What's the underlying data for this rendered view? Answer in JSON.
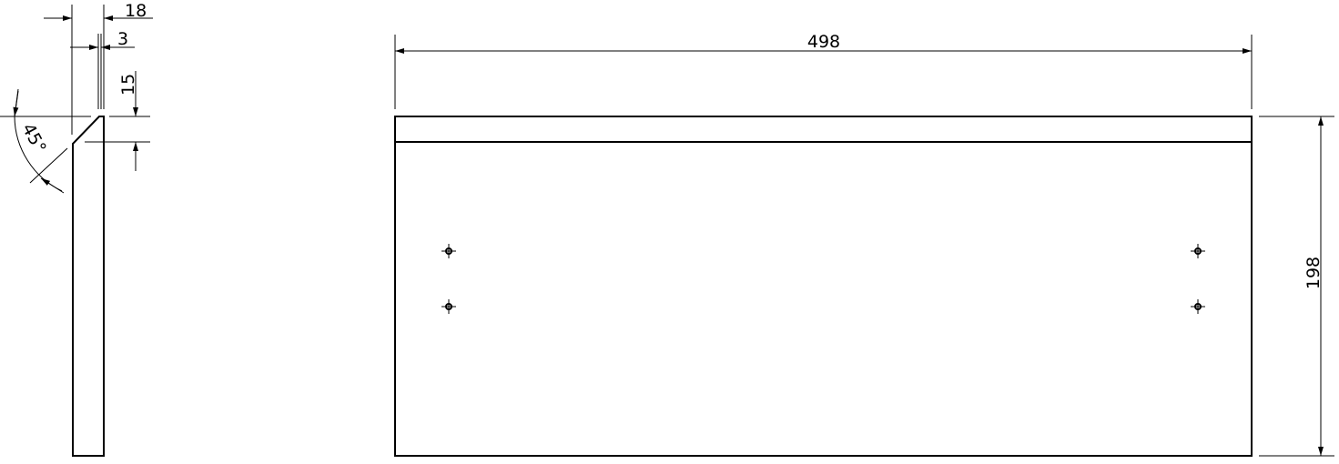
{
  "side_view": {
    "dimensions": {
      "thickness": "18",
      "groove": "3",
      "bevel_height": "15",
      "bevel_angle": "45°"
    }
  },
  "front_view": {
    "dimensions": {
      "width": "498",
      "height": "198"
    },
    "hole_count": 4
  },
  "colors": {
    "line": "#000000",
    "background": "#ffffff"
  }
}
